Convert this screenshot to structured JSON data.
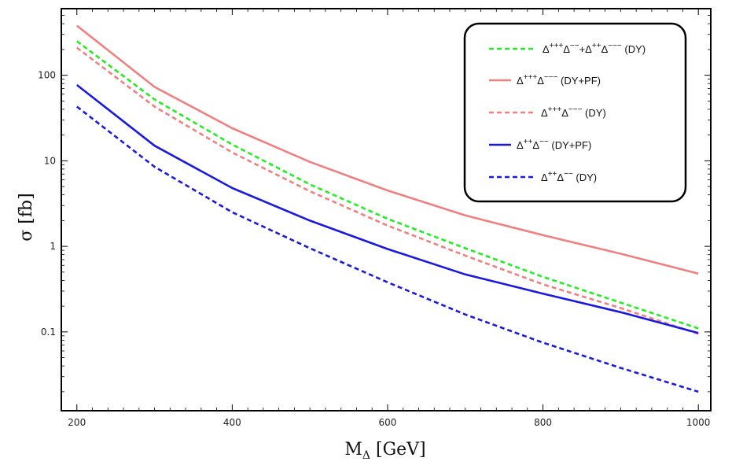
{
  "chart_data": {
    "type": "line",
    "title": "",
    "xlabel": "M",
    "xlabel_sub": "Δ",
    "xlabel_unit": " [GeV]",
    "ylabel": "σ [fb]",
    "yscale": "log",
    "xlim": [
      180,
      1016
    ],
    "ylim": [
      0.012,
      600
    ],
    "xticks": [
      200,
      400,
      600,
      800,
      1000
    ],
    "xtick_labels": [
      "200",
      "400",
      "600",
      "800",
      "1000"
    ],
    "yticks": [
      0.1,
      1,
      10,
      100
    ],
    "ytick_labels": [
      "0.1",
      "1",
      "10",
      "100"
    ],
    "x": [
      200,
      300,
      400,
      500,
      600,
      700,
      800,
      900,
      1000
    ],
    "series": [
      {
        "name": "Δ+++Δ−−+Δ++Δ−−− (DY)",
        "label_parts": [
          {
            "t": "Δ"
          },
          {
            "t": "+++",
            "sup": true
          },
          {
            "t": "Δ"
          },
          {
            "t": "−−",
            "sup": true
          },
          {
            "t": "+Δ"
          },
          {
            "t": "++",
            "sup": true
          },
          {
            "t": "Δ"
          },
          {
            "t": "−−−",
            "sup": true
          },
          {
            "t": " (DY)"
          }
        ],
        "color": "#22ee22",
        "dash": "dashed",
        "values": [
          250,
          52,
          15.5,
          5.3,
          2.1,
          0.95,
          0.44,
          0.22,
          0.11
        ]
      },
      {
        "name": "Δ+++Δ−−− (DY+PF)",
        "label_parts": [
          {
            "t": "Δ"
          },
          {
            "t": "+++",
            "sup": true
          },
          {
            "t": "Δ"
          },
          {
            "t": "−−−",
            "sup": true
          },
          {
            "t": " (DY+PF)"
          }
        ],
        "color": "#f08080",
        "dash": "solid",
        "values": [
          380,
          73,
          24,
          9.7,
          4.5,
          2.3,
          1.35,
          0.82,
          0.48
        ]
      },
      {
        "name": "Δ+++Δ−−− (DY)",
        "label_parts": [
          {
            "t": "Δ"
          },
          {
            "t": "+++",
            "sup": true
          },
          {
            "t": "Δ"
          },
          {
            "t": "−−−",
            "sup": true
          },
          {
            "t": " (DY)"
          }
        ],
        "color": "#f08080",
        "dash": "dashed",
        "values": [
          210,
          43,
          12.5,
          4.4,
          1.75,
          0.78,
          0.36,
          0.19,
          0.095
        ]
      },
      {
        "name": "Δ++Δ−− (DY+PF)",
        "label_parts": [
          {
            "t": "Δ"
          },
          {
            "t": "++",
            "sup": true
          },
          {
            "t": "Δ"
          },
          {
            "t": "−−",
            "sup": true
          },
          {
            "t": " (DY+PF)"
          }
        ],
        "color": "#1a1add",
        "dash": "solid",
        "values": [
          77,
          15,
          4.8,
          2.0,
          0.93,
          0.47,
          0.28,
          0.17,
          0.097
        ]
      },
      {
        "name": "Δ++Δ−− (DY)",
        "label_parts": [
          {
            "t": "Δ"
          },
          {
            "t": "++",
            "sup": true
          },
          {
            "t": "Δ"
          },
          {
            "t": "−−",
            "sup": true
          },
          {
            "t": " (DY)"
          }
        ],
        "color": "#1a1add",
        "dash": "dashed",
        "values": [
          43,
          8.5,
          2.5,
          0.95,
          0.38,
          0.16,
          0.075,
          0.038,
          0.02
        ]
      }
    ],
    "legend_position": "top-right",
    "grid": false
  }
}
